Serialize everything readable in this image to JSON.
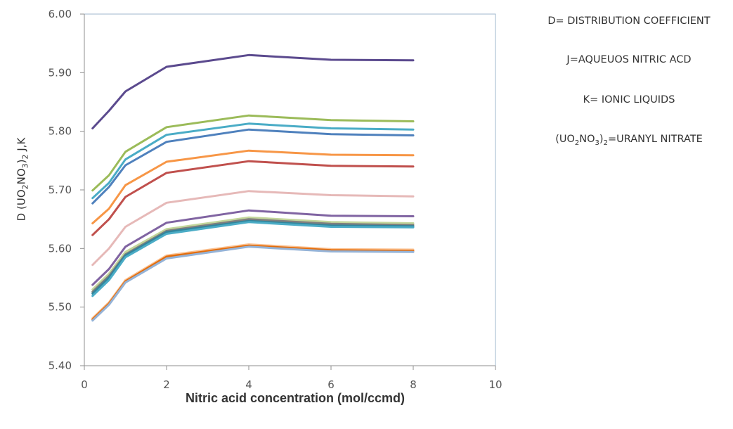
{
  "chart_data": {
    "type": "line",
    "title": "",
    "xlabel": "Nitric acid concentration (mol/ccmd)",
    "ylabel": {
      "prefix": "D (UO",
      "sub1": "2",
      "mid": "NO",
      "sub2": "3",
      "close": ")",
      "sub3": "2",
      "suffix": " J,K"
    },
    "xlim": [
      0,
      10
    ],
    "ylim": [
      5.4,
      6.0
    ],
    "xticks": [
      "0",
      "2",
      "4",
      "6",
      "8",
      "10"
    ],
    "yticks": [
      "5.40",
      "5.50",
      "5.60",
      "5.70",
      "5.80",
      "5.90",
      "6.00"
    ],
    "x": [
      0.2,
      0.6,
      1,
      2,
      4,
      6,
      8
    ],
    "grid": false,
    "legend_position": "right",
    "series": [
      {
        "color": "#5b4a8e",
        "values": [
          5.805,
          5.835,
          5.868,
          5.91,
          5.93,
          5.922,
          5.921
        ]
      },
      {
        "color": "#9bbb59",
        "values": [
          5.699,
          5.725,
          5.765,
          5.807,
          5.827,
          5.819,
          5.817
        ]
      },
      {
        "color": "#4aacc6",
        "values": [
          5.686,
          5.712,
          5.752,
          5.794,
          5.813,
          5.805,
          5.803
        ]
      },
      {
        "color": "#4f81bd",
        "values": [
          5.677,
          5.705,
          5.742,
          5.782,
          5.803,
          5.795,
          5.793
        ]
      },
      {
        "color": "#f79646",
        "values": [
          5.643,
          5.668,
          5.708,
          5.748,
          5.767,
          5.76,
          5.759
        ]
      },
      {
        "color": "#c0504d",
        "values": [
          5.623,
          5.65,
          5.688,
          5.729,
          5.749,
          5.741,
          5.74
        ]
      },
      {
        "color": "#e6b9b8",
        "values": [
          5.572,
          5.6,
          5.637,
          5.678,
          5.698,
          5.691,
          5.689
        ]
      },
      {
        "color": "#8064a2",
        "values": [
          5.538,
          5.565,
          5.603,
          5.644,
          5.665,
          5.656,
          5.655
        ]
      },
      {
        "color": "#c3d69b",
        "values": [
          5.53,
          5.557,
          5.594,
          5.633,
          5.653,
          5.645,
          5.643
        ]
      },
      {
        "color": "#7f7f7f",
        "values": [
          5.526,
          5.553,
          5.59,
          5.63,
          5.65,
          5.642,
          5.64
        ]
      },
      {
        "color": "#31859c",
        "values": [
          5.523,
          5.55,
          5.588,
          5.628,
          5.647,
          5.639,
          5.638
        ]
      },
      {
        "color": "#4bacc6",
        "values": [
          5.519,
          5.546,
          5.585,
          5.625,
          5.645,
          5.637,
          5.636
        ]
      },
      {
        "color": "#fac090",
        "values": [
          5.481,
          5.508,
          5.546,
          5.588,
          5.607,
          5.599,
          5.598
        ]
      },
      {
        "color": "#e46c0a",
        "values": [
          5.479,
          5.506,
          5.544,
          5.586,
          5.605,
          5.597,
          5.596
        ]
      },
      {
        "color": "#95b3d7",
        "values": [
          5.477,
          5.504,
          5.542,
          5.583,
          5.603,
          5.595,
          5.594
        ]
      }
    ]
  },
  "legend_notes": {
    "line1": "D= DISTRIBUTION COEFFICIENT",
    "line2": "J=AQUEUOS NITRIC ACD",
    "line3": "K= IONIC LIQUIDS",
    "line4": {
      "open": "(UO",
      "sub1": "2",
      "mid": "NO",
      "sub2": "3",
      "close": ")",
      "sub3": "2",
      "rest": "=URANYL NITRATE"
    }
  }
}
